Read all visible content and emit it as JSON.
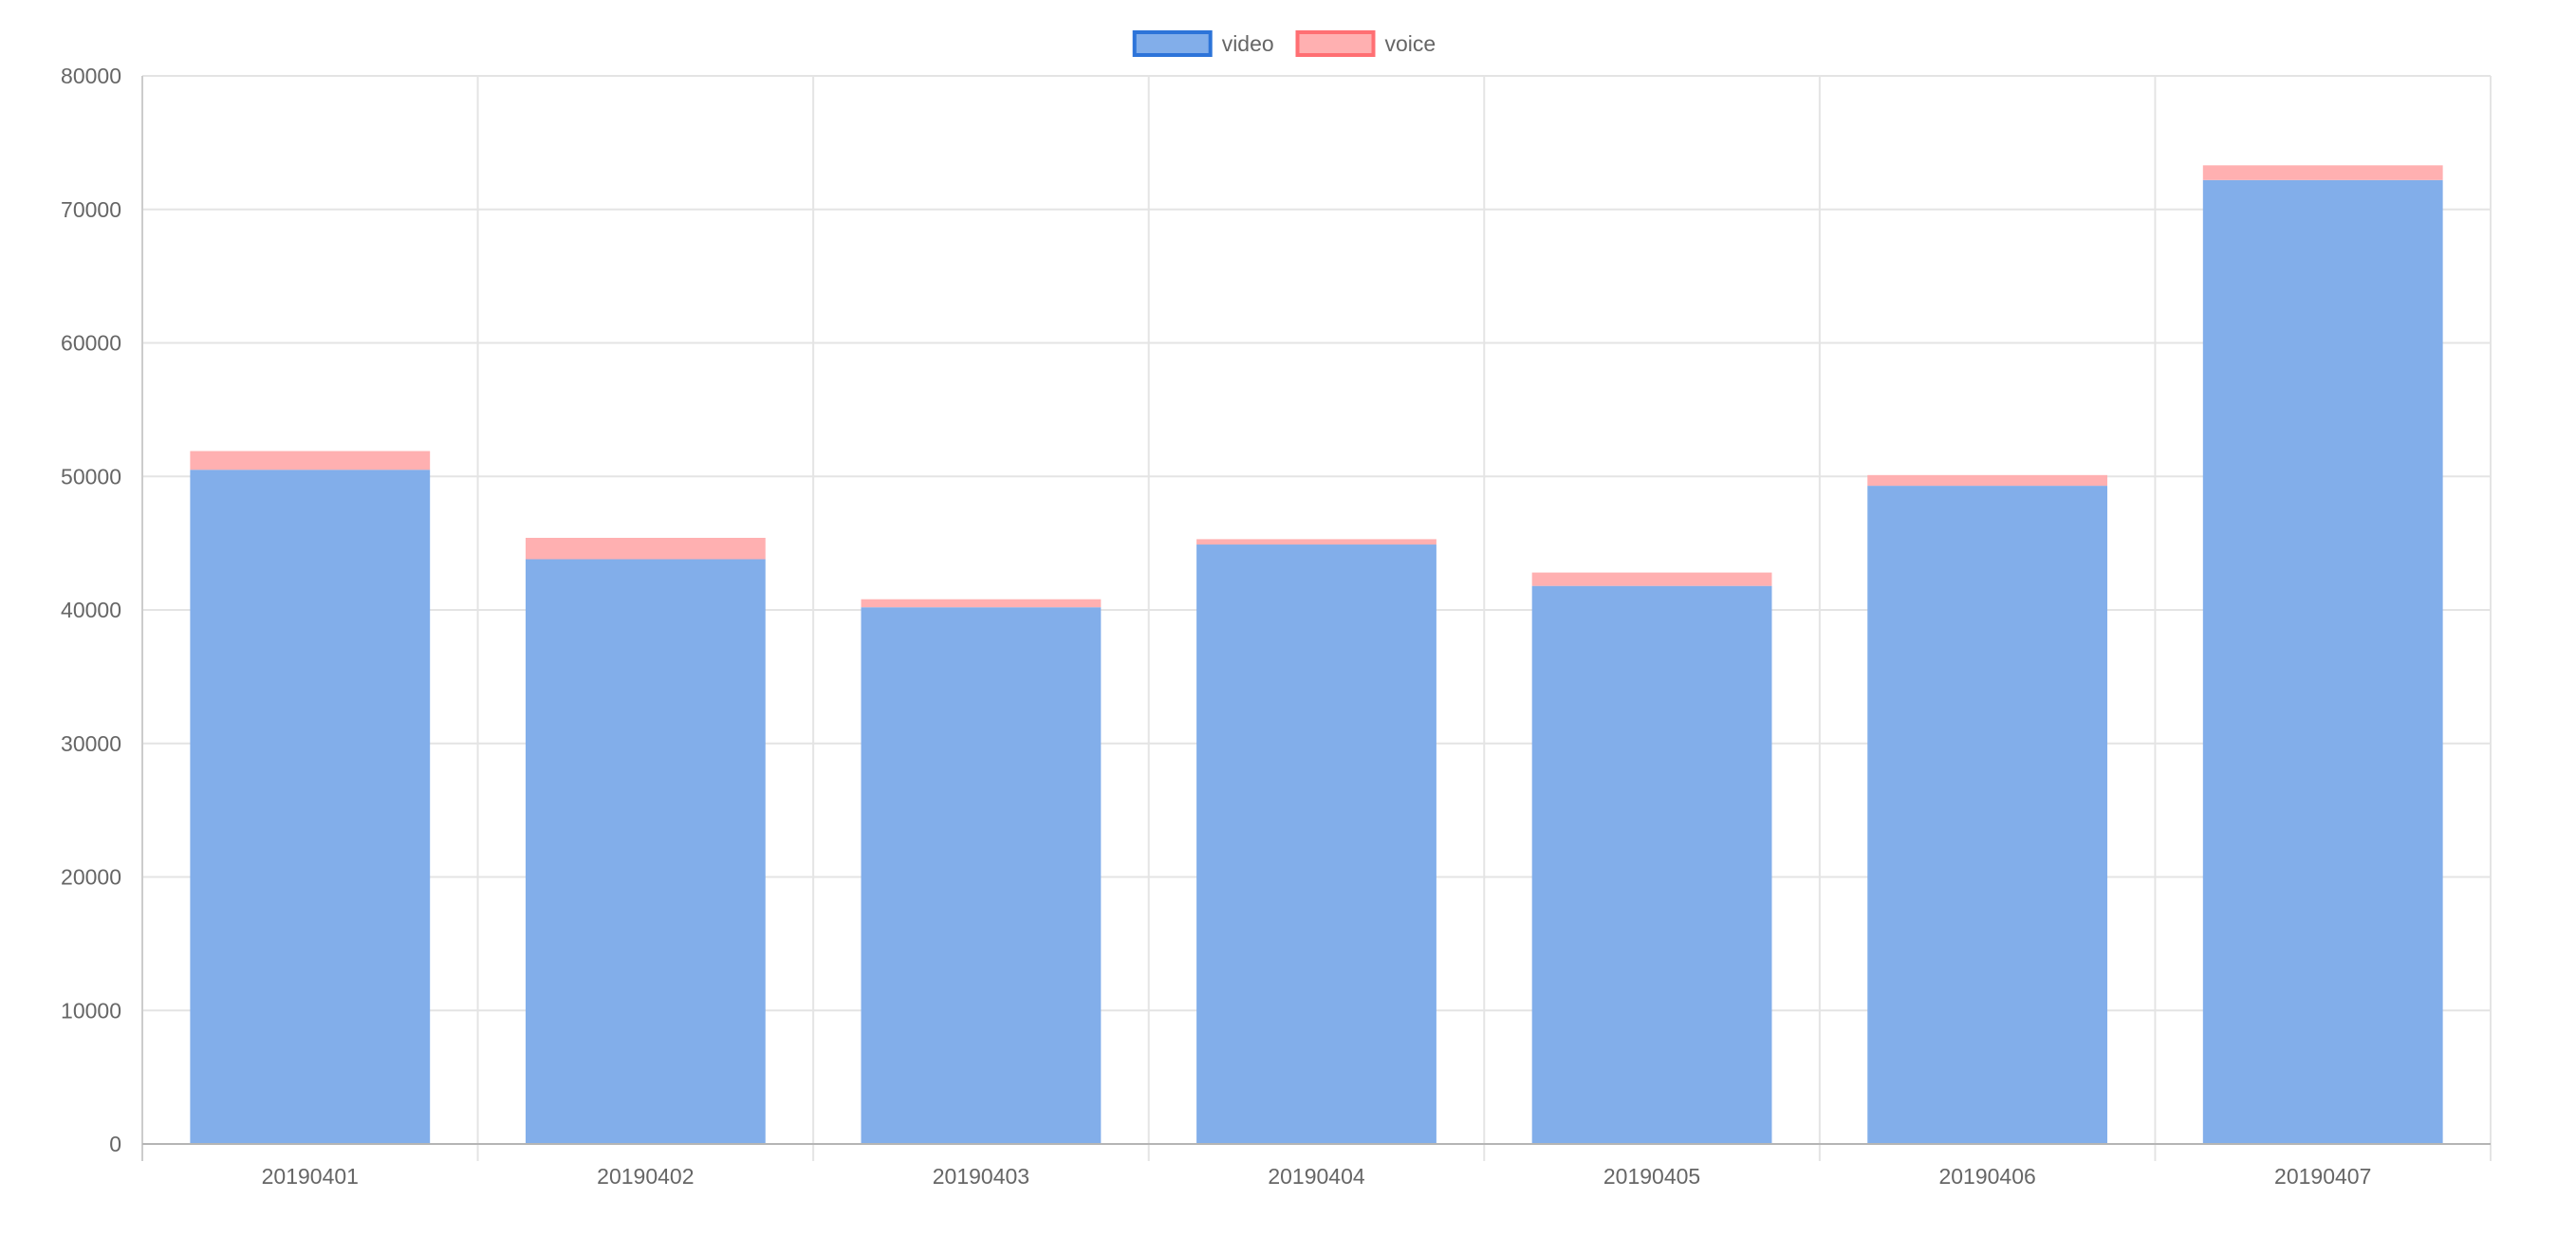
{
  "chart_data": {
    "type": "bar",
    "stacked": true,
    "title": "",
    "xlabel": "",
    "ylabel": "",
    "categories": [
      "20190401",
      "20190402",
      "20190403",
      "20190404",
      "20190405",
      "20190406",
      "20190407"
    ],
    "series": [
      {
        "name": "video",
        "values": [
          50500,
          43800,
          40200,
          44900,
          41800,
          49300,
          72200
        ],
        "fill": "#82aeea",
        "stroke": "#2d74d9"
      },
      {
        "name": "voice",
        "values": [
          1400,
          1600,
          600,
          400,
          1000,
          800,
          1100
        ],
        "fill": "#ffb0b1",
        "stroke": "#ff6f73"
      }
    ],
    "ylim": [
      0,
      80000
    ],
    "yticks": [
      0,
      10000,
      20000,
      30000,
      40000,
      50000,
      60000,
      70000,
      80000
    ],
    "grid": true,
    "legend": "top-center"
  }
}
